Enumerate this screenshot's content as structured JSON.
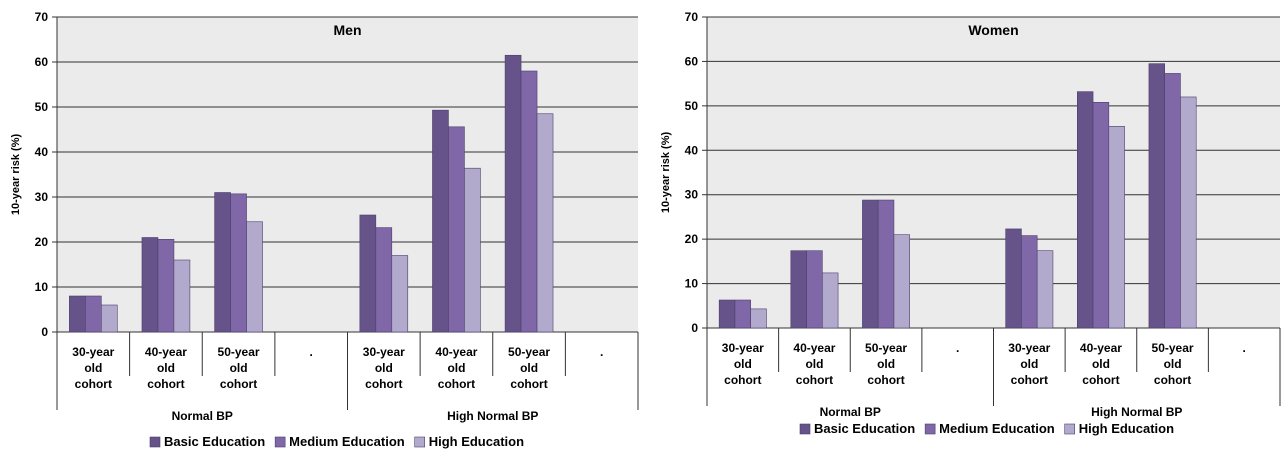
{
  "chart_data": [
    {
      "type": "bar",
      "title": "Men",
      "ylabel": "10-year risk (%)",
      "ylim": [
        0,
        70
      ],
      "yticks": [
        0,
        10,
        20,
        30,
        40,
        50,
        60,
        70
      ],
      "grid": true,
      "legend_position": "bottom",
      "categories": [
        "30-year old cohort",
        "40-year old cohort",
        "50-year old cohort",
        ".",
        "30-year old cohort",
        "40-year old cohort",
        "50-year old cohort",
        "."
      ],
      "groups": [
        {
          "label": "Normal BP",
          "span": 4
        },
        {
          "label": "High Normal BP",
          "span": 4
        }
      ],
      "series": [
        {
          "name": "Basic Education",
          "color": "#66538a",
          "values": [
            8,
            21,
            31,
            null,
            26,
            49.3,
            61.5,
            null
          ]
        },
        {
          "name": "Medium Education",
          "color": "#8067a8",
          "values": [
            8,
            20.6,
            30.7,
            null,
            23.2,
            45.6,
            58,
            null
          ]
        },
        {
          "name": "High Education",
          "color": "#b2aacc",
          "values": [
            6,
            16,
            24.5,
            null,
            17,
            36.4,
            48.5,
            null
          ]
        }
      ]
    },
    {
      "type": "bar",
      "title": "Women",
      "ylabel": "10-year risk (%)",
      "ylim": [
        0,
        70
      ],
      "yticks": [
        0,
        10,
        20,
        30,
        40,
        50,
        60,
        70
      ],
      "grid": true,
      "legend_position": "bottom",
      "categories": [
        "30-year old cohort",
        "40-year old cohort",
        "50-year old cohort",
        ".",
        "30-year old cohort",
        "40-year old cohort",
        "50-year old cohort",
        "."
      ],
      "groups": [
        {
          "label": "Normal BP",
          "span": 4
        },
        {
          "label": "High Normal BP",
          "span": 4
        }
      ],
      "series": [
        {
          "name": "Basic Education",
          "color": "#66538a",
          "values": [
            6.3,
            17.4,
            28.8,
            null,
            22.3,
            53.2,
            59.5,
            null
          ]
        },
        {
          "name": "Medium Education",
          "color": "#8067a8",
          "values": [
            6.3,
            17.4,
            28.8,
            null,
            20.8,
            50.8,
            57.3,
            null
          ]
        },
        {
          "name": "High Education",
          "color": "#b2aacc",
          "values": [
            4.3,
            12.4,
            21,
            null,
            17.4,
            45.4,
            52,
            null
          ]
        }
      ]
    }
  ]
}
